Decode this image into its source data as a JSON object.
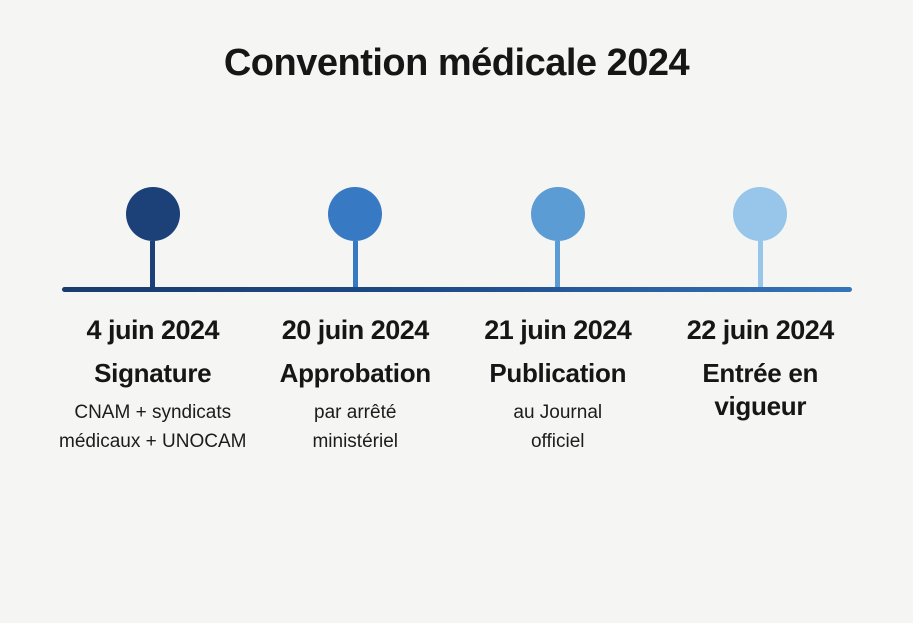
{
  "title": "Convention médicale 2024",
  "colors": {
    "background": "#f5f5f4",
    "text": "#161616",
    "axis_gradient_start": "#1a3b6d",
    "axis_gradient_end": "#3575ba"
  },
  "timeline": {
    "milestones": [
      {
        "date": "4 juin 2024",
        "label": "Signature",
        "detail_line1": "CNAM + syndicats",
        "detail_line2": "médicaux + UNOCAM",
        "color": "#1b4178"
      },
      {
        "date": "20 juin 2024",
        "label": "Approbation",
        "detail_line1": "par arrêté",
        "detail_line2": "ministériel",
        "color": "#3879c3"
      },
      {
        "date": "21 juin 2024",
        "label": "Publication",
        "detail_line1": "au Journal",
        "detail_line2": "officiel",
        "color": "#5b9cd5"
      },
      {
        "date": "22 juin 2024",
        "label": "Entrée en vigueur",
        "detail_line1": "",
        "detail_line2": "",
        "color": "#97c6ea"
      }
    ]
  }
}
